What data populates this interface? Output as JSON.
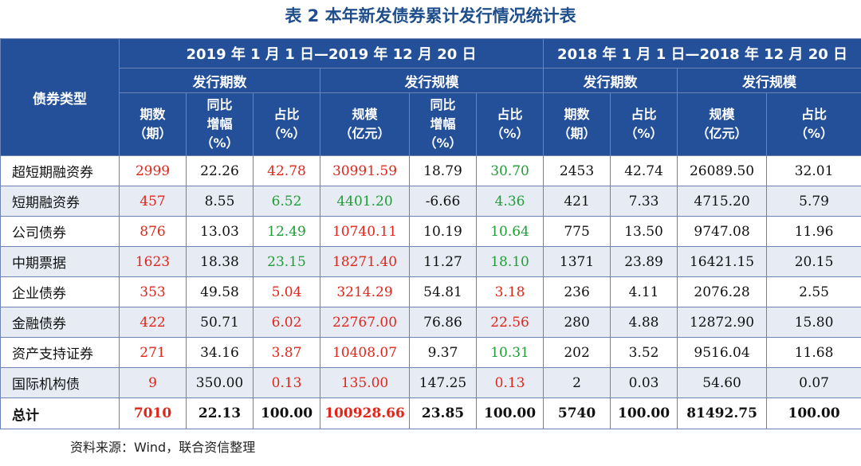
{
  "title": "表 2  本年新发债券累计发行情况统计表",
  "colors": {
    "header_bg": "#24509a",
    "header_text": "#ffffff",
    "red": "#e0261b",
    "green": "#1f9e35",
    "stripe": "#e7ecf4"
  },
  "header": {
    "type_label": "债券类型",
    "period_2019": "2019 年 1 月 1 日—2019 年 12 月 20 日",
    "period_2018": "2018 年 1 月 1 日—2018 年 12 月 20 日",
    "group_count": "发行期数",
    "group_scale": "发行规模",
    "columns": [
      [
        "期数",
        "（期）"
      ],
      [
        "同比",
        "增幅",
        "（%）"
      ],
      [
        "占比",
        "（%）"
      ],
      [
        "规模",
        "（亿元）"
      ],
      [
        "同比",
        "增幅",
        "（%）"
      ],
      [
        "占比",
        "（%）"
      ],
      [
        "期数",
        "（期）"
      ],
      [
        "占比",
        "（%）"
      ],
      [
        "规模",
        "（亿元）"
      ],
      [
        "占比",
        "（%）"
      ]
    ]
  },
  "rows": [
    {
      "name": "超短期融资券",
      "values": [
        "2999",
        "22.26",
        "42.78",
        "30991.59",
        "18.79",
        "30.70",
        "2453",
        "42.74",
        "26089.50",
        "32.01"
      ],
      "colors": [
        "red",
        "",
        "red",
        "red",
        "",
        "green",
        "",
        "",
        "",
        ""
      ]
    },
    {
      "name": "短期融资券",
      "values": [
        "457",
        "8.55",
        "6.52",
        "4401.20",
        "-6.66",
        "4.36",
        "421",
        "7.33",
        "4715.20",
        "5.79"
      ],
      "colors": [
        "red",
        "",
        "green",
        "green",
        "",
        "green",
        "",
        "",
        "",
        ""
      ]
    },
    {
      "name": "公司债券",
      "values": [
        "876",
        "13.03",
        "12.49",
        "10740.11",
        "10.19",
        "10.64",
        "775",
        "13.50",
        "9747.08",
        "11.96"
      ],
      "colors": [
        "red",
        "",
        "green",
        "red",
        "",
        "green",
        "",
        "",
        "",
        ""
      ]
    },
    {
      "name": "中期票据",
      "values": [
        "1623",
        "18.38",
        "23.15",
        "18271.40",
        "11.27",
        "18.10",
        "1371",
        "23.89",
        "16421.15",
        "20.15"
      ],
      "colors": [
        "red",
        "",
        "green",
        "red",
        "",
        "green",
        "",
        "",
        "",
        ""
      ]
    },
    {
      "name": "企业债券",
      "values": [
        "353",
        "49.58",
        "5.04",
        "3214.29",
        "54.81",
        "3.18",
        "236",
        "4.11",
        "2076.28",
        "2.55"
      ],
      "colors": [
        "red",
        "",
        "red",
        "red",
        "",
        "red",
        "",
        "",
        "",
        ""
      ]
    },
    {
      "name": "金融债券",
      "values": [
        "422",
        "50.71",
        "6.02",
        "22767.00",
        "76.86",
        "22.56",
        "280",
        "4.88",
        "12872.90",
        "15.80"
      ],
      "colors": [
        "red",
        "",
        "red",
        "red",
        "",
        "red",
        "",
        "",
        "",
        ""
      ]
    },
    {
      "name": "资产支持证券",
      "values": [
        "271",
        "34.16",
        "3.87",
        "10408.07",
        "9.37",
        "10.31",
        "202",
        "3.52",
        "9516.04",
        "11.68"
      ],
      "colors": [
        "red",
        "",
        "red",
        "red",
        "",
        "green",
        "",
        "",
        "",
        ""
      ]
    },
    {
      "name": "国际机构债",
      "values": [
        "9",
        "350.00",
        "0.13",
        "135.00",
        "147.25",
        "0.13",
        "2",
        "0.03",
        "54.60",
        "0.07"
      ],
      "colors": [
        "red",
        "",
        "red",
        "red",
        "",
        "red",
        "",
        "",
        "",
        ""
      ]
    },
    {
      "name": "总计",
      "values": [
        "7010",
        "22.13",
        "100.00",
        "100928.66",
        "23.85",
        "100.00",
        "5740",
        "100.00",
        "81492.75",
        "100.00"
      ],
      "colors": [
        "red",
        "",
        "",
        "red",
        "",
        "",
        "",
        "",
        "",
        ""
      ],
      "total": true
    }
  ],
  "source": "资料来源：Wind，联合资信整理"
}
